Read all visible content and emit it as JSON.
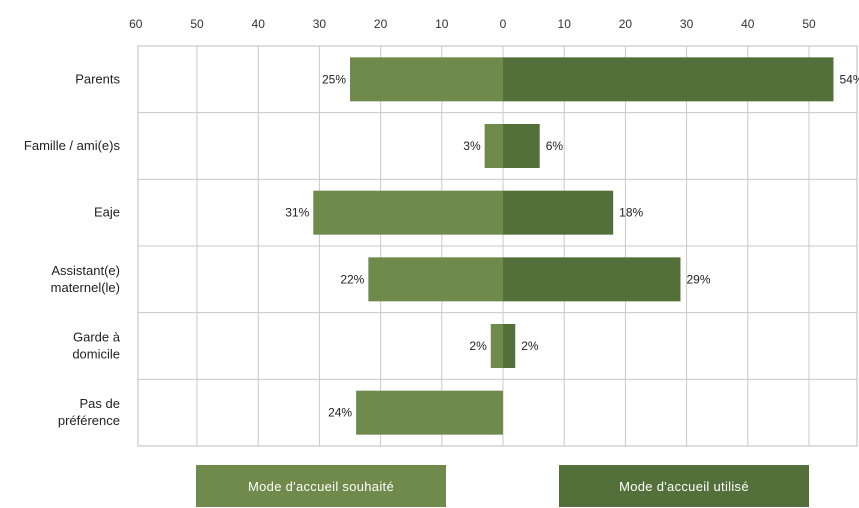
{
  "chart_data": {
    "type": "bar",
    "orientation": "horizontal-diverging",
    "categories": [
      [
        "Parents"
      ],
      [
        "Famille / ami(e)s"
      ],
      [
        "Eaje"
      ],
      [
        "Assistant(e)",
        "maternel(le)"
      ],
      [
        "Garde à",
        "domicile"
      ],
      [
        "Pas de",
        "préférence"
      ]
    ],
    "series": [
      {
        "name": "Mode d'accueil souhaité",
        "side": "left",
        "color": "#6f8a4a",
        "values": [
          25,
          3,
          31,
          22,
          2,
          24
        ],
        "labels": [
          "25%",
          "3%",
          "31%",
          "22%",
          "2%",
          "24%"
        ]
      },
      {
        "name": "Mode d'accueil utilisé",
        "side": "right",
        "color": "#53703a",
        "values": [
          54,
          6,
          18,
          29,
          2,
          null
        ],
        "labels": [
          "54%",
          "6%",
          "18%",
          "29%",
          "2%",
          ""
        ]
      }
    ],
    "xticks": [
      "60",
      "50",
      "40",
      "30",
      "20",
      "10",
      "0",
      "10",
      "20",
      "30",
      "40",
      "50"
    ],
    "xlim": [
      -60,
      58
    ],
    "grid": true,
    "legend_position": "bottom"
  },
  "legend": {
    "left_label": "Mode d'accueil souhaité",
    "right_label": "Mode d'accueil utilisé"
  }
}
